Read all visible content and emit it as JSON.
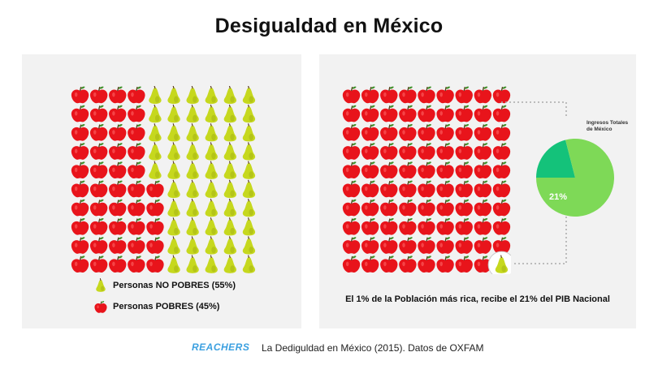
{
  "title": "Desigualdad en México",
  "legend": {
    "no_pobres": "Personas NO POBRES (55%)",
    "pobres": "Personas POBRES (45%)"
  },
  "pie": {
    "label": "Ingresos Totales de México",
    "slice_label": "21%"
  },
  "caption": "El 1% de la Población más rica, recibe el 21% del PIB Nacional",
  "footer": {
    "brand": "REACHERS",
    "source": "La Dediguldad en México (2015). Datos de OXFAM"
  },
  "colors": {
    "apple": "#e8141b",
    "pear": "#c6d81e",
    "pie_main": "#7ed957",
    "pie_slice": "#14c27a",
    "panel": "#f2f2f2"
  },
  "chart_data": [
    {
      "type": "table",
      "grid": {
        "rows": 10,
        "columns": 10,
        "total": 100,
        "fill_order": "column-major-left-to-right-bottom-up"
      },
      "series": [
        {
          "name": "Personas POBRES (45%)",
          "icon": "apple-icon",
          "count": 45
        },
        {
          "name": "Personas NO POBRES (55%)",
          "icon": "pear-icon",
          "count": 55
        }
      ]
    },
    {
      "type": "table",
      "grid": {
        "rows": 10,
        "columns": 9,
        "total": 90
      },
      "series": [
        {
          "icon": "apple-icon",
          "count": 89
        },
        {
          "icon": "pear-icon",
          "count": 1,
          "highlighted": true
        }
      ]
    },
    {
      "type": "pie",
      "title": "Ingresos Totales de México",
      "values": [
        21,
        79
      ],
      "labels": [
        "21%",
        ""
      ]
    }
  ]
}
